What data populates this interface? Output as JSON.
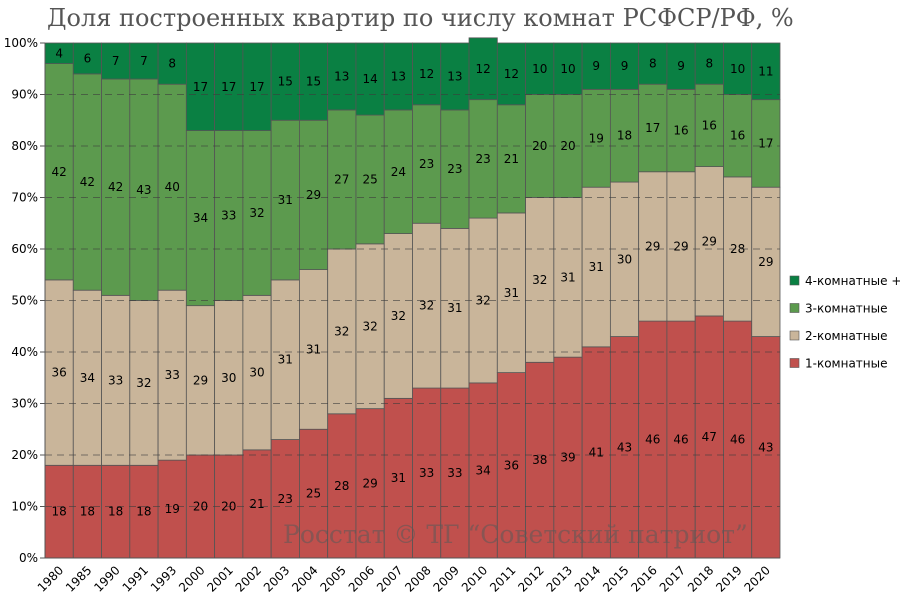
{
  "chart_data": {
    "type": "bar",
    "stacked": true,
    "title": "Доля построенных квартир по числу комнат РСФСР/РФ, %",
    "xlabel": "",
    "ylabel": "",
    "ylim": [
      0,
      100
    ],
    "yticks": [
      "0%",
      "10%",
      "20%",
      "30%",
      "40%",
      "50%",
      "60%",
      "70%",
      "80%",
      "90%",
      "100%"
    ],
    "grid": true,
    "legend_position": "right",
    "categories": [
      "1980",
      "1985",
      "1990",
      "1991",
      "1993",
      "2000",
      "2001",
      "2002",
      "2003",
      "2004",
      "2005",
      "2006",
      "2007",
      "2008",
      "2009",
      "2010",
      "2011",
      "2012",
      "2013",
      "2014",
      "2015",
      "2016",
      "2017",
      "2018",
      "2019",
      "2020"
    ],
    "series": [
      {
        "name": "1-комнатные",
        "color": "#c0504d",
        "values": [
          18,
          18,
          18,
          18,
          19,
          20,
          20,
          21,
          23,
          25,
          28,
          29,
          31,
          33,
          33,
          34,
          36,
          38,
          39,
          41,
          43,
          46,
          46,
          47,
          46,
          43
        ]
      },
      {
        "name": "2-комнатные",
        "color": "#c9b59a",
        "values": [
          36,
          34,
          33,
          32,
          33,
          29,
          30,
          30,
          31,
          31,
          32,
          32,
          32,
          32,
          31,
          32,
          31,
          32,
          31,
          31,
          30,
          29,
          29,
          29,
          28,
          29
        ]
      },
      {
        "name": "3-комнатные",
        "color": "#5c9a4e",
        "values": [
          42,
          42,
          42,
          43,
          40,
          34,
          33,
          32,
          31,
          29,
          27,
          25,
          24,
          23,
          23,
          23,
          21,
          20,
          20,
          19,
          18,
          17,
          16,
          16,
          16,
          17
        ]
      },
      {
        "name": "4-комнатные +",
        "color": "#0a8043",
        "values": [
          4,
          6,
          7,
          7,
          8,
          17,
          17,
          17,
          15,
          15,
          13,
          14,
          13,
          12,
          13,
          12,
          12,
          10,
          10,
          9,
          9,
          8,
          9,
          8,
          10,
          11
        ]
      }
    ],
    "legend_order": [
      "4-комнатные +",
      "3-комнатные",
      "2-комнатные",
      "1-комнатные"
    ],
    "watermark": "Росстат © ТГ “Советский патриот”"
  }
}
